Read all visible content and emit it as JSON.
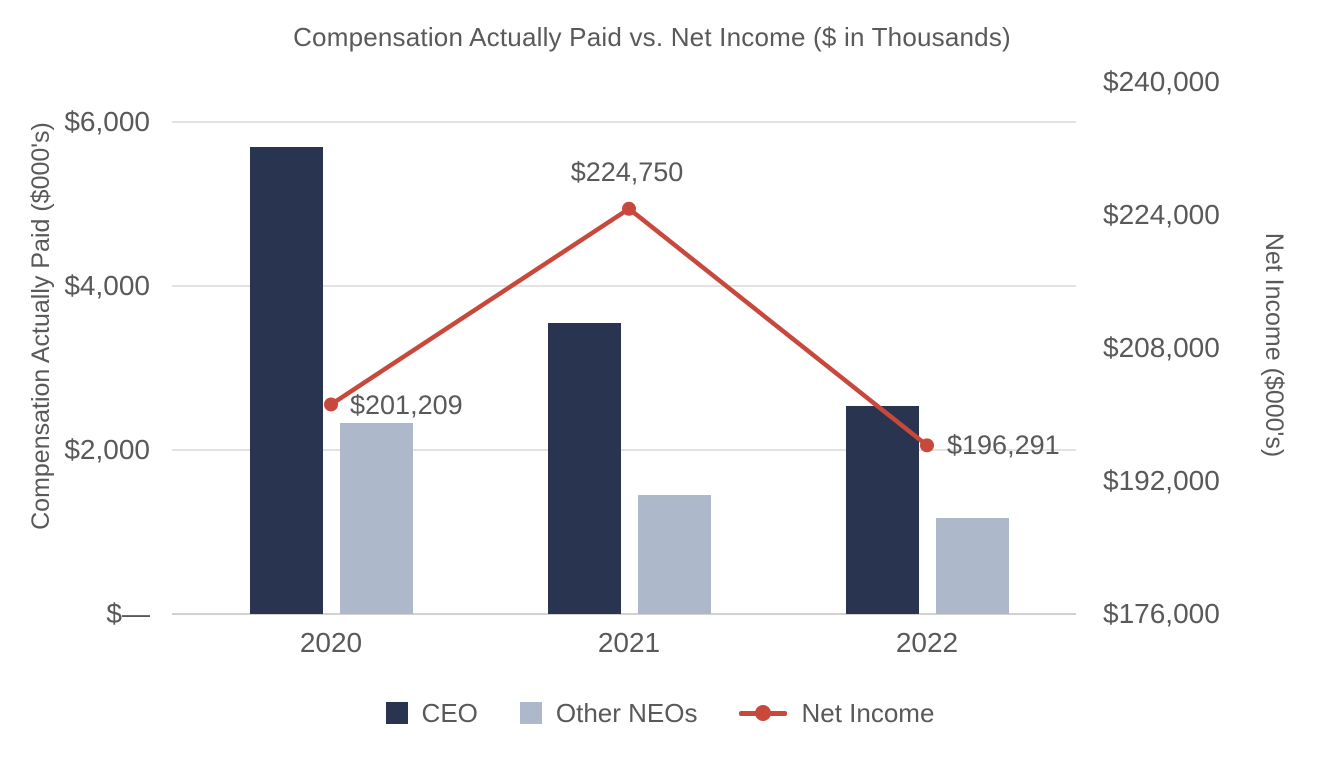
{
  "chart_data": {
    "type": "bar+line combo",
    "title": "Compensation Actually Paid vs. Net Income ($ in Thousands)",
    "categories": [
      "2020",
      "2021",
      "2022"
    ],
    "series": [
      {
        "name": "CEO",
        "type": "bar",
        "axis": "left",
        "values": [
          5700,
          3550,
          2540
        ]
      },
      {
        "name": "Other NEOs",
        "type": "bar",
        "axis": "left",
        "values": [
          2330,
          1450,
          1170
        ]
      },
      {
        "name": "Net Income",
        "type": "line",
        "axis": "right",
        "values": [
          201209,
          224750,
          196291
        ],
        "point_labels": [
          "$201,209",
          "$224,750",
          "$196,291"
        ]
      }
    ],
    "left_axis": {
      "title": "Compensation Actually Paid ($000's)",
      "min": 0,
      "max": 6000,
      "grid": true,
      "ticks": [
        {
          "value": 0,
          "label": "$—"
        },
        {
          "value": 2000,
          "label": "$2,000"
        },
        {
          "value": 4000,
          "label": "$4,000"
        },
        {
          "value": 6000,
          "label": "$6,000"
        }
      ]
    },
    "right_axis": {
      "title": "Net Income ($000's)",
      "min": 176000,
      "max": 240000,
      "grid": false,
      "ticks": [
        {
          "value": 176000,
          "label": "$176,000"
        },
        {
          "value": 192000,
          "label": "$192,000"
        },
        {
          "value": 208000,
          "label": "$208,000"
        },
        {
          "value": 224000,
          "label": "$224,000"
        },
        {
          "value": 240000,
          "label": "$240,000"
        }
      ]
    },
    "legend": {
      "position": "bottom",
      "entries": [
        "CEO",
        "Other NEOs",
        "Net Income"
      ]
    },
    "colors": {
      "ceo_bar": "#293550",
      "other_neos_bar": "#adb8ca",
      "net_income_line": "#c8493c",
      "text": "#595959",
      "gridline": "#e3e3e3",
      "axis_line": "#d2d2d2"
    }
  }
}
